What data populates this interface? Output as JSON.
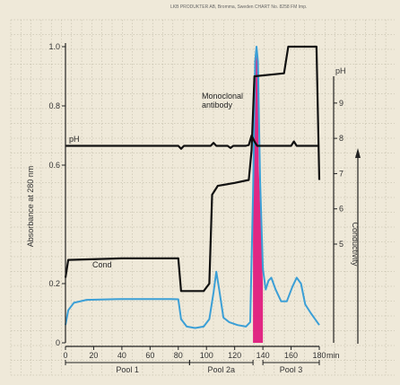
{
  "header": "LKB PRODUKTER AB, Bromma, Sweden     CHART No. 8258 FM Imp.",
  "chart_data": {
    "type": "line",
    "x_unit": "min",
    "x_ticks": [
      "0",
      "20",
      "40",
      "60",
      "80",
      "100",
      "120",
      "140",
      "160",
      "180"
    ],
    "xlim": [
      0,
      180
    ],
    "left_axis": {
      "label": "Absorbance at 280 nm",
      "ticks": [
        "0",
        "0.2",
        "0.6",
        "0.8",
        "1.0"
      ],
      "ylim": [
        0,
        1.0
      ]
    },
    "right_axis": {
      "label": "pH",
      "ticks": [
        "5",
        "6",
        "7",
        "8",
        "9"
      ],
      "ylim": [
        2.2,
        10.6
      ]
    },
    "conductivity_label": "Conductivity",
    "annotations": {
      "ph_label": "pH",
      "cond_label": "Cond",
      "peak_label": "Monoclonal antibody"
    },
    "series": [
      {
        "name": "Absorbance",
        "color": "#3b9fd6",
        "points": [
          [
            0,
            0.06
          ],
          [
            2,
            0.11
          ],
          [
            6,
            0.135
          ],
          [
            15,
            0.145
          ],
          [
            40,
            0.148
          ],
          [
            75,
            0.148
          ],
          [
            80,
            0.147
          ],
          [
            82,
            0.08
          ],
          [
            86,
            0.055
          ],
          [
            92,
            0.05
          ],
          [
            98,
            0.055
          ],
          [
            102,
            0.08
          ],
          [
            105,
            0.17
          ],
          [
            107,
            0.24
          ],
          [
            109,
            0.18
          ],
          [
            112,
            0.085
          ],
          [
            116,
            0.07
          ],
          [
            122,
            0.06
          ],
          [
            128,
            0.055
          ],
          [
            131,
            0.07
          ],
          [
            133,
            0.5
          ],
          [
            134.5,
            0.95
          ],
          [
            135.5,
            1.0
          ],
          [
            136.5,
            0.95
          ],
          [
            138,
            0.55
          ],
          [
            140,
            0.25
          ],
          [
            142,
            0.18
          ],
          [
            144,
            0.21
          ],
          [
            146,
            0.22
          ],
          [
            149,
            0.18
          ],
          [
            153,
            0.14
          ],
          [
            157,
            0.14
          ],
          [
            161,
            0.19
          ],
          [
            164,
            0.22
          ],
          [
            167,
            0.2
          ],
          [
            170,
            0.13
          ],
          [
            174,
            0.1
          ],
          [
            177,
            0.08
          ],
          [
            180,
            0.06
          ]
        ]
      },
      {
        "name": "Conductivity",
        "color": "#111111",
        "points": [
          [
            0,
            0.22
          ],
          [
            2,
            0.28
          ],
          [
            40,
            0.285
          ],
          [
            80,
            0.285
          ],
          [
            82,
            0.175
          ],
          [
            98,
            0.175
          ],
          [
            102,
            0.2
          ],
          [
            104,
            0.5
          ],
          [
            108,
            0.53
          ],
          [
            120,
            0.54
          ],
          [
            130,
            0.55
          ],
          [
            132,
            0.65
          ],
          [
            134,
            0.9
          ],
          [
            155,
            0.91
          ],
          [
            158,
            1.0
          ],
          [
            178,
            1.0
          ],
          [
            180,
            0.55
          ]
        ]
      },
      {
        "name": "pH",
        "color": "#111111",
        "points": [
          [
            0,
            0.665
          ],
          [
            80,
            0.665
          ],
          [
            82,
            0.655
          ],
          [
            84,
            0.665
          ],
          [
            103,
            0.665
          ],
          [
            105,
            0.675
          ],
          [
            107,
            0.665
          ],
          [
            115,
            0.665
          ],
          [
            117,
            0.658
          ],
          [
            119,
            0.665
          ],
          [
            128,
            0.665
          ],
          [
            130,
            0.668
          ],
          [
            132,
            0.7
          ],
          [
            134,
            0.68
          ],
          [
            136,
            0.665
          ],
          [
            160,
            0.665
          ],
          [
            162,
            0.68
          ],
          [
            164,
            0.665
          ],
          [
            180,
            0.665
          ]
        ]
      }
    ],
    "highlight": {
      "color": "#e0167c",
      "points": [
        [
          133,
          0
        ],
        [
          133,
          0.5
        ],
        [
          134.5,
          0.95
        ],
        [
          135.5,
          1.0
        ],
        [
          136.5,
          0.95
        ],
        [
          137,
          0.6
        ],
        [
          139,
          0.35
        ],
        [
          140,
          0.2
        ],
        [
          140,
          0
        ]
      ]
    },
    "pools": [
      {
        "label": "Pool 1",
        "start": 0,
        "end": 88
      },
      {
        "label": "Pool 2a",
        "start": 88,
        "end": 133
      },
      {
        "label": "Pool 3",
        "start": 140,
        "end": 180
      }
    ],
    "grid": true
  }
}
